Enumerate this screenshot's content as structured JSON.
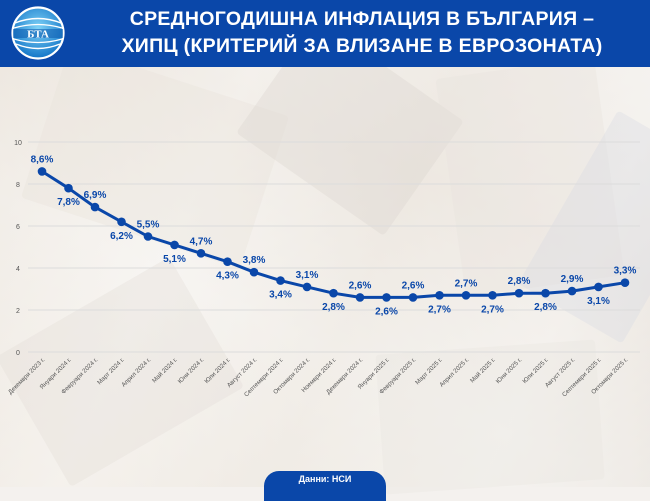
{
  "header": {
    "logo_text": "БТА",
    "title_line1": "СРЕДНОГОДИШНА ИНФЛАЦИЯ В БЪЛГАРИЯ –",
    "title_line2": "ХИПЦ (КРИТЕРИЙ ЗА ВЛИЗАНЕ В ЕВРОЗОНАТА)"
  },
  "footer": {
    "source": "Данни: НСИ"
  },
  "colors": {
    "brand_blue": "#0a47a9",
    "line": "#0a47a9",
    "label": "#0a47a9",
    "grid": "#dcdcdc",
    "tick": "#555555"
  },
  "chart_data": {
    "type": "line",
    "title": "СРЕДНОГОДИШНА ИНФЛАЦИЯ В БЪЛГАРИЯ – ХИПЦ (КРИТЕРИЙ ЗА ВЛИЗАНЕ В ЕВРОЗОНАТА)",
    "xlabel": "",
    "ylabel": "",
    "ylim": [
      0,
      10
    ],
    "yticks": [
      0,
      2,
      4,
      6,
      8,
      10
    ],
    "grid": true,
    "legend": null,
    "categories": [
      "Декември 2023 г.",
      "Януари 2024 г.",
      "Февруари 2024 г.",
      "Март 2024 г.",
      "Април 2024 г.",
      "Май 2024 г.",
      "Юни 2024 г.",
      "Юли 2024 г.",
      "Август 2024 г.",
      "Септември 2024 г.",
      "Октомври 2024 г.",
      "Ноември 2024 г.",
      "Декември 2024 г.",
      "Януари 2025 г.",
      "Февруари 2025 г.",
      "Март 2025 г.",
      "Април 2025 г.",
      "Май 2025 г.",
      "Юни 2025 г.",
      "Юли 2025 г.",
      "Август 2025 г.",
      "Септември 2025 г.",
      "Октомври 2025 г."
    ],
    "values": [
      8.6,
      7.8,
      6.9,
      6.2,
      5.5,
      5.1,
      4.7,
      4.3,
      3.8,
      3.4,
      3.1,
      2.8,
      2.6,
      2.6,
      2.6,
      2.7,
      2.7,
      2.7,
      2.8,
      2.8,
      2.9,
      3.1,
      3.3
    ],
    "data_labels": [
      "8,6%",
      "7,8%",
      "6,9%",
      "6,2%",
      "5,5%",
      "5,1%",
      "4,7%",
      "4,3%",
      "3,8%",
      "3,4%",
      "3,1%",
      "2,8%",
      "2,6%",
      "2,6%",
      "2,6%",
      "2,7%",
      "2,7%",
      "2,7%",
      "2,8%",
      "2,8%",
      "2,9%",
      "3,1%",
      "3,3%"
    ],
    "label_positions": [
      "above",
      "below",
      "above",
      "below",
      "above",
      "below",
      "above",
      "below",
      "above",
      "below",
      "above",
      "below",
      "above",
      "below",
      "above",
      "below",
      "above",
      "below",
      "above",
      "below",
      "above",
      "below",
      "above"
    ],
    "unit": "%"
  }
}
